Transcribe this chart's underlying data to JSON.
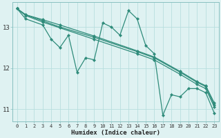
{
  "title": "",
  "xlabel": "Humidex (Indice chaleur)",
  "bg_color": "#dff2f2",
  "line_color": "#2e8b7a",
  "grid_color": "#b8dede",
  "xlim": [
    -0.5,
    23.5
  ],
  "ylim": [
    10.7,
    13.6
  ],
  "yticks": [
    11,
    12,
    13
  ],
  "xticks": [
    0,
    1,
    2,
    3,
    4,
    5,
    6,
    7,
    8,
    9,
    10,
    11,
    12,
    13,
    14,
    15,
    16,
    17,
    18,
    19,
    20,
    21,
    22,
    23
  ],
  "series": [
    {
      "x": [
        0,
        1,
        3,
        5,
        9,
        14,
        16,
        19,
        21,
        22,
        23
      ],
      "y": [
        13.45,
        13.3,
        13.15,
        13.0,
        12.75,
        12.4,
        12.25,
        11.9,
        11.65,
        11.55,
        11.1
      ]
    },
    {
      "x": [
        0,
        1,
        3,
        5,
        9,
        14,
        16,
        19,
        21,
        22,
        23
      ],
      "y": [
        13.45,
        13.3,
        13.18,
        13.05,
        12.78,
        12.42,
        12.27,
        11.92,
        11.67,
        11.57,
        11.15
      ]
    },
    {
      "x": [
        0,
        1,
        3,
        5,
        9,
        14,
        16,
        19,
        21,
        22,
        23
      ],
      "y": [
        13.45,
        13.28,
        13.12,
        12.98,
        12.7,
        12.35,
        12.2,
        11.85,
        11.6,
        11.5,
        11.05
      ]
    },
    {
      "x": [
        0,
        1,
        3,
        4,
        5,
        6,
        7,
        8,
        9,
        10,
        11,
        12,
        13,
        14,
        15,
        16,
        17,
        18,
        19,
        20,
        21,
        22,
        23
      ],
      "y": [
        13.45,
        13.2,
        13.05,
        12.7,
        12.5,
        12.8,
        11.9,
        12.25,
        12.2,
        13.1,
        13.0,
        12.8,
        13.4,
        13.2,
        12.55,
        12.35,
        10.85,
        11.35,
        11.3,
        11.5,
        11.5,
        11.4,
        10.9
      ]
    }
  ]
}
